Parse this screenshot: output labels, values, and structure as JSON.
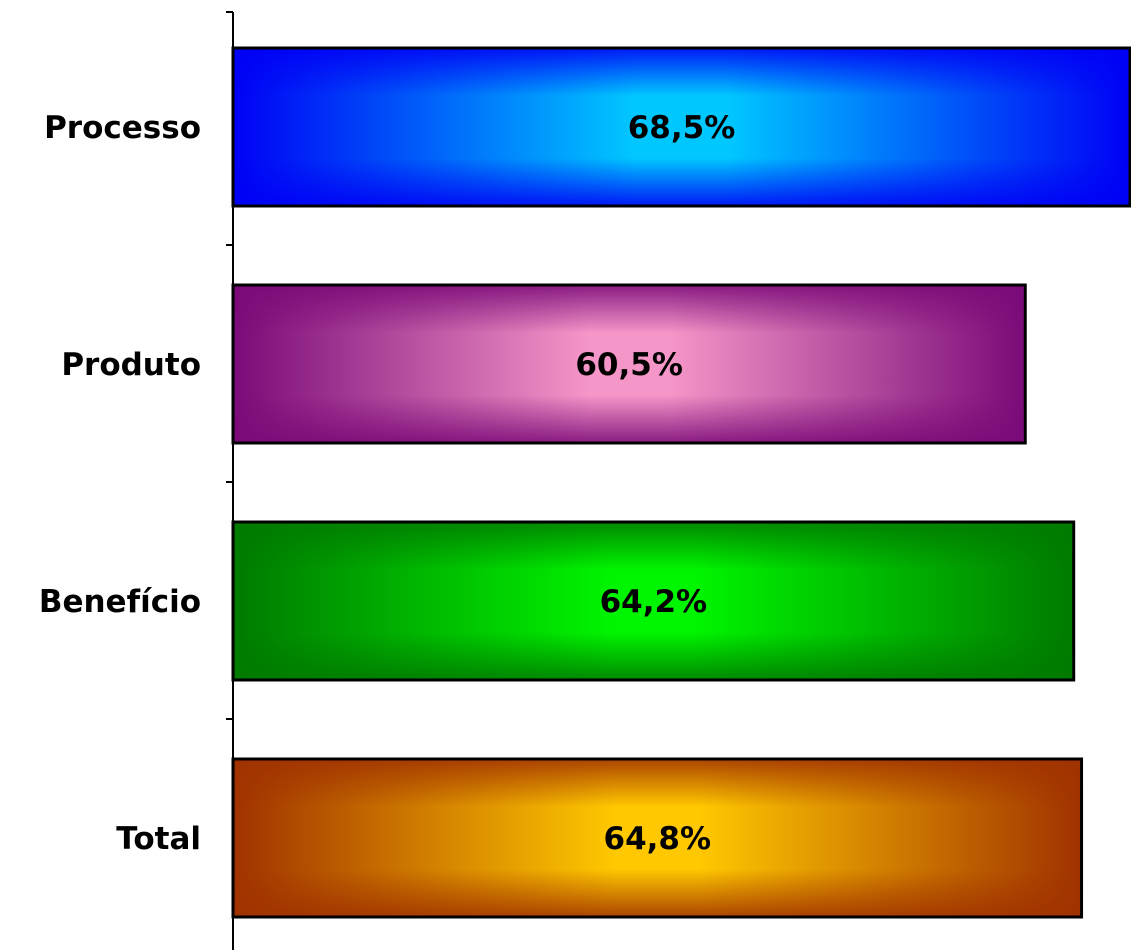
{
  "chart_data": {
    "type": "bar",
    "orientation": "horizontal",
    "categories": [
      "Processo",
      "Produto",
      "Benefício",
      "Total"
    ],
    "values": [
      68.5,
      60.5,
      64.2,
      64.8
    ],
    "value_labels": [
      "68,5%",
      "60,5%",
      "64,2%",
      "64,8%"
    ],
    "bar_colors": [
      {
        "edge": "#0000f5",
        "center": "#00c8ff"
      },
      {
        "edge": "#7a0a78",
        "center": "#f596c8"
      },
      {
        "edge": "#007a00",
        "center": "#00f500"
      },
      {
        "edge": "#a03200",
        "center": "#ffc800"
      }
    ],
    "title": "",
    "xlabel": "",
    "ylabel": "",
    "grid": false,
    "legend": "none"
  }
}
